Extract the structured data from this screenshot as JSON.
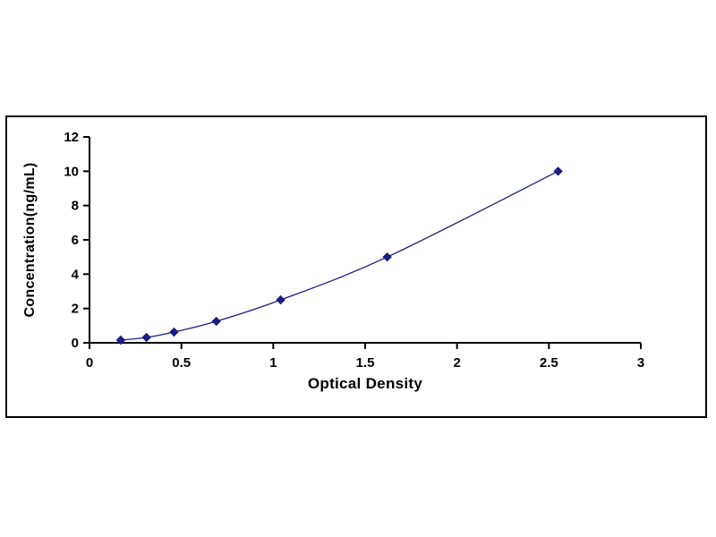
{
  "chart_data": {
    "type": "line",
    "title": "",
    "xlabel": "Optical Density",
    "ylabel": "Concentration(ng/mL)",
    "x": [
      0.17,
      0.31,
      0.46,
      0.69,
      1.04,
      1.62,
      2.55
    ],
    "y": [
      0.156,
      0.312,
      0.625,
      1.25,
      2.5,
      5,
      10
    ],
    "xlim": [
      0,
      3
    ],
    "ylim": [
      0,
      12
    ],
    "xticks": [
      0,
      0.5,
      1,
      1.5,
      2,
      2.5,
      3
    ],
    "yticks": [
      0,
      2,
      4,
      6,
      8,
      10,
      12
    ],
    "grid": false,
    "legend": "none",
    "line_color": "#1c1c84",
    "marker": "diamond",
    "marker_color": "#1c1c84",
    "axis_color": "#000000",
    "tick_label_color": "#000000",
    "background_color": "#ffffff"
  }
}
